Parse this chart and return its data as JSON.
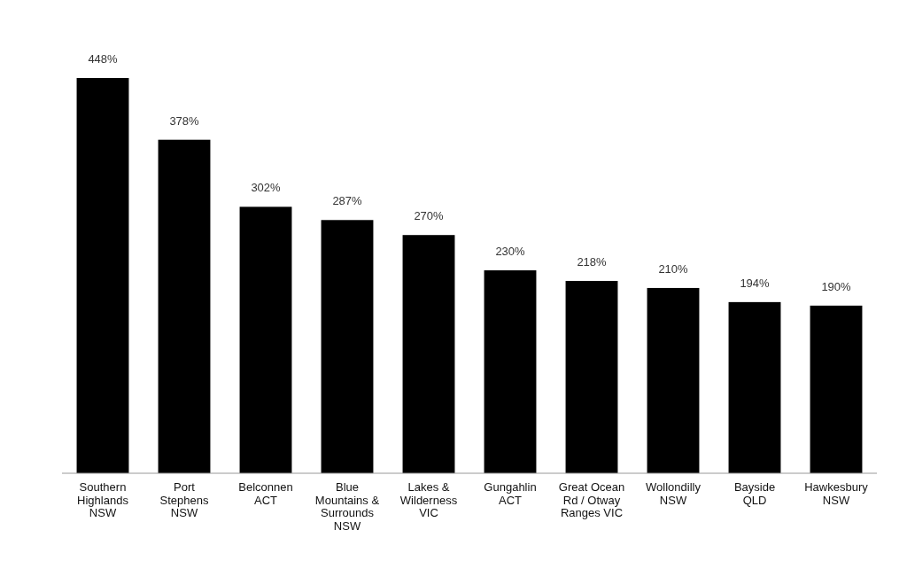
{
  "chart_data": {
    "type": "bar",
    "categories": [
      "Southern Highlands NSW",
      "Port Stephens NSW",
      "Belconnen ACT",
      "Blue Mountains & Surrounds NSW",
      "Lakes & Wilderness VIC",
      "Gungahlin ACT",
      "Great Ocean Rd / Otway Ranges VIC",
      "Wollondilly NSW",
      "Bayside QLD",
      "Hawkesbury NSW"
    ],
    "values": [
      448,
      378,
      302,
      287,
      270,
      230,
      218,
      210,
      194,
      190
    ],
    "value_labels": [
      "448%",
      "378%",
      "302%",
      "287%",
      "270%",
      "230%",
      "218%",
      "210%",
      "194%",
      "190%"
    ],
    "color": "#000000"
  }
}
